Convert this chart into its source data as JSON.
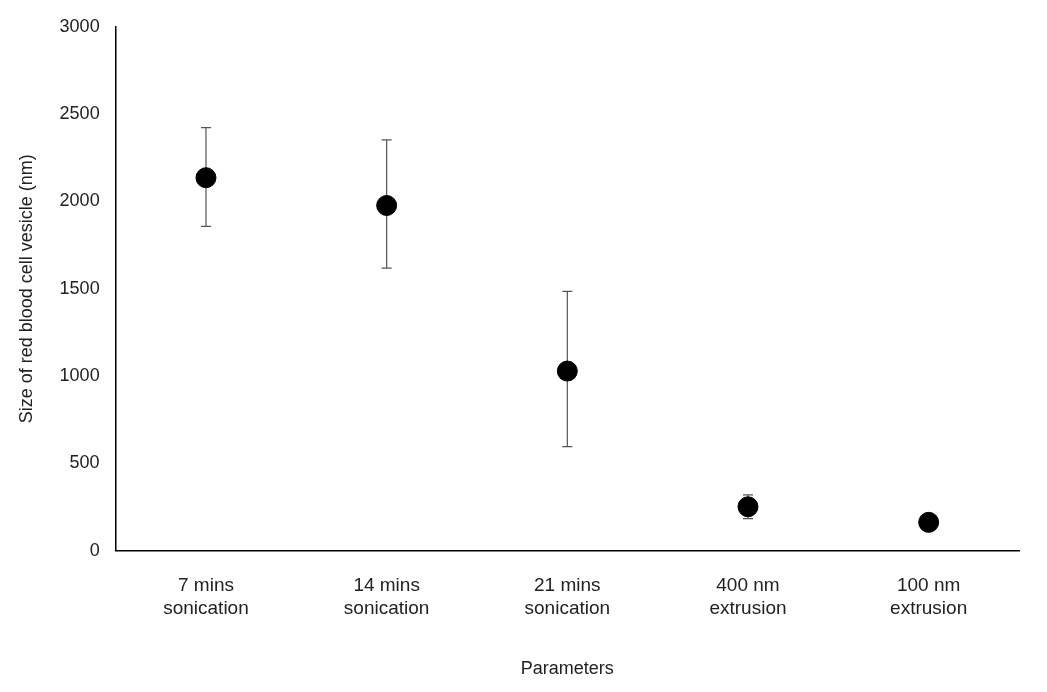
{
  "chart_data": {
    "type": "scatter",
    "xlabel": "Parameters",
    "ylabel": "Size of red blood cell vesicle (nm)",
    "categories": [
      "7 mins sonication",
      "14 mins sonication",
      "21 mins sonication",
      "400 nm extrusion",
      "100 nm extrusion"
    ],
    "values": [
      2136,
      1977,
      1029,
      252,
      163
    ],
    "errors": [
      [
        1857,
        2423
      ],
      [
        1618,
        2353
      ],
      [
        596,
        1485
      ],
      68,
      null
    ],
    "color": "#000000",
    "marker": "circle",
    "ylim": [
      0,
      3000
    ],
    "yticks": [
      0,
      500,
      1000,
      1500,
      2000,
      2500,
      3000
    ],
    "grid": false,
    "legend": false
  }
}
